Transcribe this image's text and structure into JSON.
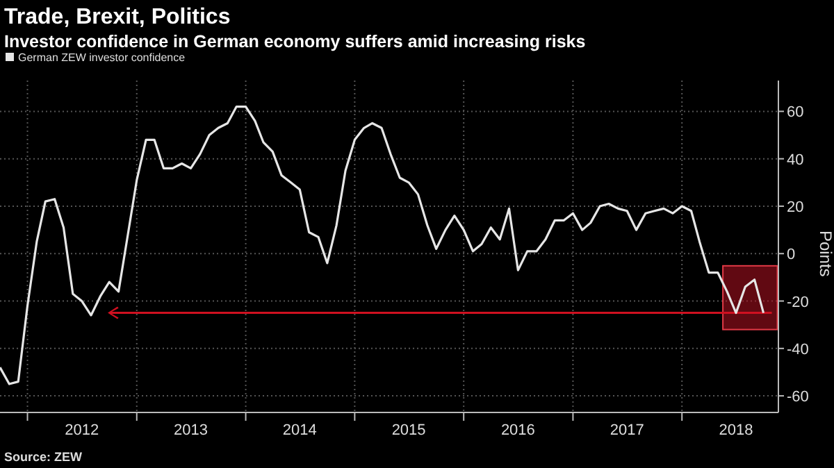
{
  "chart_data": {
    "type": "line",
    "title": "Trade, Brexit, Politics",
    "subtitle": "Investor confidence in German economy suffers amid increasing risks",
    "ylabel": "Points",
    "annotations": [
      "Source: ZEW"
    ],
    "legend": "top left",
    "grid": true,
    "line_style": "solid",
    "marker": "none",
    "x": [
      "2011-10",
      "2011-11",
      "2011-12",
      "2012-01",
      "2012-02",
      "2012-03",
      "2012-04",
      "2012-05",
      "2012-06",
      "2012-07",
      "2012-08",
      "2012-09",
      "2012-10",
      "2012-11",
      "2012-12",
      "2013-01",
      "2013-02",
      "2013-03",
      "2013-04",
      "2013-05",
      "2013-06",
      "2013-07",
      "2013-08",
      "2013-09",
      "2013-10",
      "2013-11",
      "2013-12",
      "2014-01",
      "2014-02",
      "2014-03",
      "2014-04",
      "2014-05",
      "2014-06",
      "2014-07",
      "2014-08",
      "2014-09",
      "2014-10",
      "2014-11",
      "2014-12",
      "2015-01",
      "2015-02",
      "2015-03",
      "2015-04",
      "2015-05",
      "2015-06",
      "2015-07",
      "2015-08",
      "2015-09",
      "2015-10",
      "2015-11",
      "2015-12",
      "2016-01",
      "2016-02",
      "2016-03",
      "2016-04",
      "2016-05",
      "2016-06",
      "2016-07",
      "2016-08",
      "2016-09",
      "2016-10",
      "2016-11",
      "2016-12",
      "2017-01",
      "2017-02",
      "2017-03",
      "2017-04",
      "2017-05",
      "2017-06",
      "2017-07",
      "2017-08",
      "2017-09",
      "2017-10",
      "2017-11",
      "2017-12",
      "2018-01",
      "2018-02",
      "2018-03",
      "2018-04",
      "2018-05",
      "2018-06",
      "2018-07",
      "2018-08",
      "2018-09",
      "2018-10"
    ],
    "series": [
      {
        "name": "German ZEW investor confidence",
        "color": "#e6e6e6",
        "values": [
          -48,
          -55,
          -54,
          -22,
          5,
          22,
          23,
          11,
          -17,
          -20,
          -26,
          -18,
          -12,
          -16,
          7,
          31,
          48,
          48,
          36,
          36,
          38,
          36,
          42,
          50,
          53,
          55,
          62,
          62,
          56,
          47,
          43,
          33,
          30,
          27,
          9,
          7,
          -4,
          12,
          35,
          48,
          53,
          55,
          53,
          42,
          32,
          30,
          25,
          12,
          2,
          10,
          16,
          10,
          1,
          4,
          11,
          6,
          19,
          -7,
          1,
          1,
          6,
          14,
          14,
          17,
          10,
          13,
          20,
          21,
          19,
          18,
          10,
          17,
          18,
          19,
          17,
          20,
          18,
          5,
          -8,
          -8,
          -16,
          -25,
          -14,
          -11,
          -25
        ]
      }
    ],
    "xlim": [
      "2011-10-01",
      "2018-11-20"
    ],
    "xticks": [
      {
        "value": "2012-01-01",
        "label": null
      },
      {
        "value": "2012-07-01",
        "label": "2012"
      },
      {
        "value": "2013-01-01",
        "label": null
      },
      {
        "value": "2013-07-01",
        "label": "2013"
      },
      {
        "value": "2014-01-01",
        "label": null
      },
      {
        "value": "2014-07-01",
        "label": "2014"
      },
      {
        "value": "2015-01-01",
        "label": null
      },
      {
        "value": "2015-07-01",
        "label": "2015"
      },
      {
        "value": "2016-01-01",
        "label": null
      },
      {
        "value": "2016-07-01",
        "label": "2016"
      },
      {
        "value": "2017-01-01",
        "label": null
      },
      {
        "value": "2017-07-01",
        "label": "2017"
      },
      {
        "value": "2018-01-01",
        "label": null
      },
      {
        "value": "2018-07-01",
        "label": "2018"
      }
    ],
    "ylim": [
      -67,
      73
    ],
    "yticks": [
      -60,
      -40,
      -20,
      0,
      20,
      40,
      60
    ]
  }
}
